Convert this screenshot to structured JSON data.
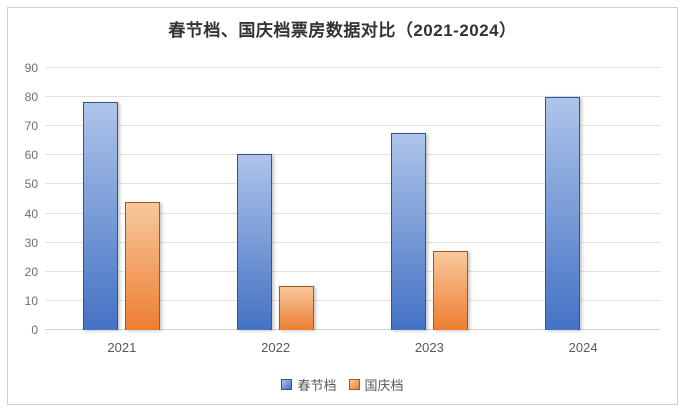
{
  "chart_data": {
    "type": "bar",
    "title": "春节档、国庆档票房数据对比（2021-2024）",
    "categories": [
      "2021",
      "2022",
      "2023",
      "2024"
    ],
    "series": [
      {
        "name": "春节档",
        "values": [
          78.2,
          60.4,
          67.6,
          80.2
        ],
        "color_top": "#aec4ea",
        "color_bottom": "#4472c4",
        "border_color": "#2f5597"
      },
      {
        "name": "国庆档",
        "values": [
          43.9,
          15.0,
          27.3,
          null
        ],
        "color_top": "#f8c89c",
        "color_bottom": "#ed7d31",
        "border_color": "#9e5b21"
      }
    ],
    "xlabel": "",
    "ylabel": "",
    "ylim": [
      0,
      90
    ],
    "yticks": [
      0,
      10,
      20,
      30,
      40,
      50,
      60,
      70,
      80,
      90
    ],
    "grid": true,
    "legend_position": "bottom"
  },
  "colors": {
    "title_text": "#333333",
    "axis_text": "#6e6e6e",
    "gridline": "#e0e0e0",
    "frame_border": "#cfcfcf",
    "background": "#ffffff"
  }
}
